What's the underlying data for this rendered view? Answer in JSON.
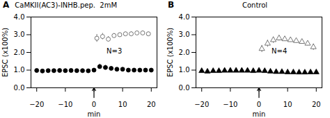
{
  "chart_data": [
    {
      "type": "scatter",
      "title": "CaMKII(AC3)-INHB.pep.  2mM",
      "panel_label": "A",
      "annotations": [
        "N=3"
      ],
      "xlabel": "min",
      "ylabel": "EPSC (x100%)",
      "xlim": [
        -22,
        22
      ],
      "ylim": [
        0,
        4
      ],
      "xticks": [
        -20,
        -10,
        0,
        10,
        20
      ],
      "yticks": [
        0,
        1,
        2,
        3,
        4
      ],
      "arrow": {
        "x": 0,
        "y1": -0.55,
        "y2": 0
      },
      "series": [
        {
          "color": "#555555",
          "marker": "circle-open",
          "x": [
            1,
            3,
            5,
            7,
            9,
            11,
            13,
            15,
            17,
            19
          ],
          "values": [
            2.8,
            2.9,
            2.75,
            2.95,
            3.0,
            3.05,
            3.05,
            3.1,
            3.1,
            3.05
          ],
          "yerr": [
            0.22,
            0.18,
            0.15,
            0.12,
            0.1,
            0.1,
            0.12,
            0.1,
            0.1,
            0.1
          ]
        },
        {
          "color": "#000000",
          "marker": "circle",
          "x": [
            -20,
            -18,
            -16,
            -14,
            -12,
            -10,
            -8,
            -6,
            -4,
            -2,
            0,
            2,
            4,
            6,
            8,
            10,
            12,
            14,
            16,
            18,
            20
          ],
          "values": [
            0.98,
            0.95,
            0.97,
            0.97,
            0.98,
            0.97,
            0.98,
            0.97,
            0.97,
            0.96,
            1.0,
            1.2,
            1.15,
            1.1,
            1.05,
            1.05,
            1.0,
            1.0,
            1.0,
            1.0,
            1.0
          ],
          "yerr": [
            0.05,
            0.05,
            0.05,
            0.04,
            0.04,
            0.04,
            0.04,
            0.04,
            0.04,
            0.04,
            0.05,
            0.14,
            0.12,
            0.09,
            0.07,
            0.06,
            0.06,
            0.05,
            0.05,
            0.05,
            0.05
          ]
        }
      ]
    },
    {
      "type": "scatter",
      "title": "Control",
      "panel_label": "B",
      "annotations": [
        "N=4"
      ],
      "xlabel": "min",
      "ylabel": "EPSC (x100%)",
      "xlim": [
        -22,
        22
      ],
      "ylim": [
        0,
        4
      ],
      "xticks": [
        -20,
        -10,
        0,
        10,
        20
      ],
      "yticks": [
        0,
        1,
        2,
        3,
        4
      ],
      "arrow": {
        "x": 0,
        "y1": -0.55,
        "y2": 0
      },
      "series": [
        {
          "color": "#555555",
          "marker": "triangle-open",
          "x": [
            1,
            3,
            5,
            7,
            9,
            11,
            13,
            15,
            17,
            19
          ],
          "values": [
            2.2,
            2.5,
            2.7,
            2.8,
            2.75,
            2.7,
            2.65,
            2.6,
            2.5,
            2.3
          ],
          "yerr": [
            0.2,
            0.2,
            0.18,
            0.15,
            0.12,
            0.12,
            0.12,
            0.12,
            0.12,
            0.18
          ]
        },
        {
          "color": "#000000",
          "marker": "triangle",
          "x": [
            -20,
            -18,
            -16,
            -14,
            -12,
            -10,
            -8,
            -6,
            -4,
            -2,
            0,
            2,
            4,
            6,
            8,
            10,
            12,
            14,
            16,
            18,
            20
          ],
          "values": [
            0.95,
            0.92,
            0.95,
            0.95,
            0.97,
            0.97,
            0.97,
            0.97,
            0.97,
            0.95,
            0.97,
            0.95,
            0.92,
            0.9,
            0.9,
            0.88,
            0.88,
            0.87,
            0.87,
            0.88,
            0.88
          ],
          "yerr": [
            0.04,
            0.04,
            0.04,
            0.04,
            0.04,
            0.04,
            0.04,
            0.04,
            0.04,
            0.04,
            0.04,
            0.05,
            0.05,
            0.05,
            0.05,
            0.08,
            0.06,
            0.06,
            0.07,
            0.07,
            0.08
          ]
        }
      ]
    }
  ]
}
